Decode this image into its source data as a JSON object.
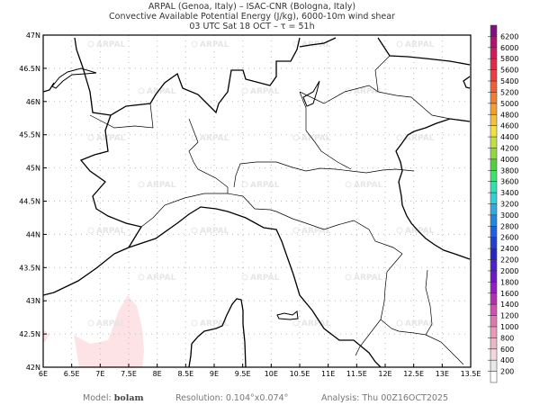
{
  "header": {
    "line1": "ARPAL (Genoa, Italy)  –  ISAC-CNR (Bologna, Italy)",
    "line2": "Convective Available Potential Energy (J/kg), 6000-10m wind shear",
    "line3": "03 UTC Sat 18 OCT  –  τ = 51h"
  },
  "map": {
    "lon_range": [
      6,
      13.5
    ],
    "lat_range": [
      42,
      47
    ],
    "x_ticks": [
      "6E",
      "6.5E",
      "7E",
      "7.5E",
      "8E",
      "8.5E",
      "9E",
      "9.5E",
      "10E",
      "10.5E",
      "11E",
      "11.5E",
      "12E",
      "12.5E",
      "13E",
      "13.5E"
    ],
    "y_ticks": [
      "42N",
      "42.5N",
      "43N",
      "43.5N",
      "44N",
      "44.5N",
      "45N",
      "45.5N",
      "46N",
      "46.5N",
      "47N"
    ],
    "grid": "dotted every 0.5°",
    "watermark": "ARPAL",
    "cape_field_color": "#fde3e6"
  },
  "colorbar": {
    "labels": [
      "200",
      "400",
      "600",
      "800",
      "1000",
      "1200",
      "1400",
      "1600",
      "1800",
      "2000",
      "2200",
      "2400",
      "2600",
      "2800",
      "3000",
      "3200",
      "3400",
      "3600",
      "3800",
      "4000",
      "4200",
      "4400",
      "4600",
      "4800",
      "5000",
      "5200",
      "5400",
      "5600",
      "5800",
      "6000",
      "6200"
    ],
    "colors": [
      "#ffffff",
      "#e8e8e8",
      "#f2d8dc",
      "#e8b8c4",
      "#e89ab8",
      "#e078b0",
      "#d050b0",
      "#b030b0",
      "#9020b8",
      "#7018c0",
      "#5020c8",
      "#2828c0",
      "#2040d0",
      "#2060e0",
      "#2088d8",
      "#30a8e0",
      "#30d0d8",
      "#30e0b0",
      "#40e070",
      "#50d040",
      "#90d840",
      "#c0e040",
      "#f0e040",
      "#f0c040",
      "#f0a030",
      "#f08030",
      "#f06030",
      "#e84040",
      "#e02848",
      "#d01860",
      "#b01070",
      "#801080"
    ]
  },
  "footer": {
    "model_label": "Model:",
    "model_value": "bolam",
    "resolution": "Resolution: 0.104°x0.074°",
    "analysis": "Analysis: Thu 00Z16OCT2025"
  }
}
